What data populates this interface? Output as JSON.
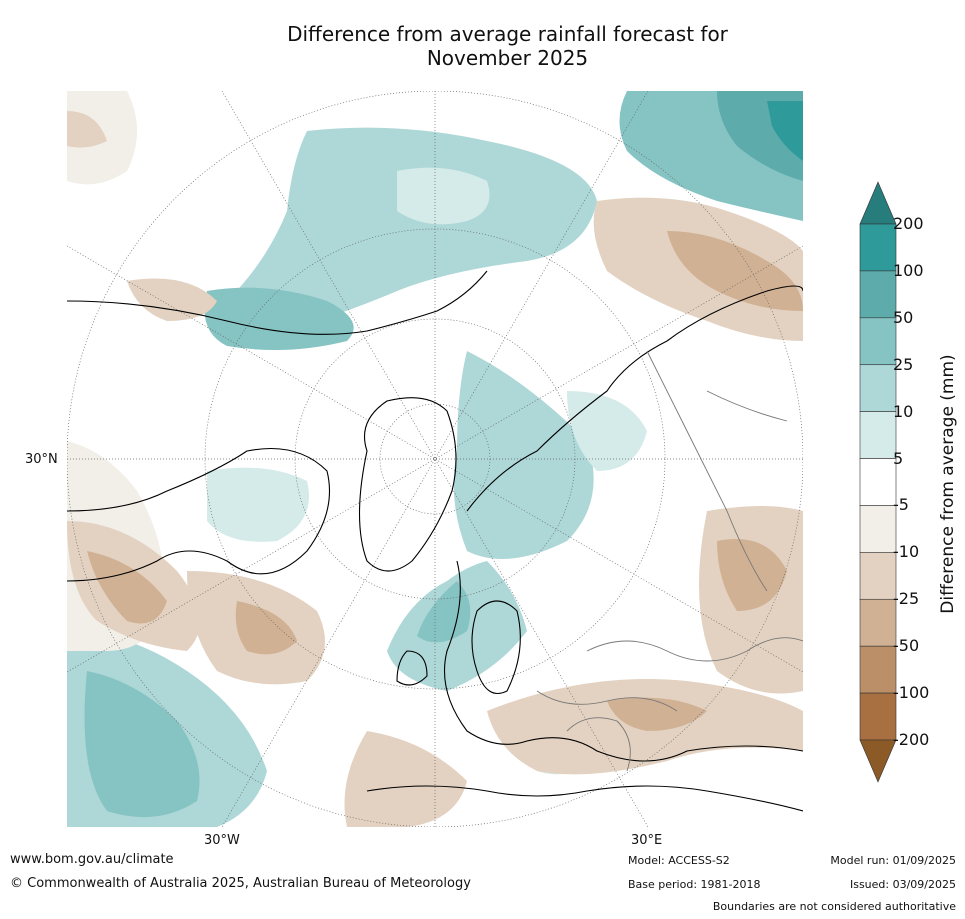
{
  "title_line1": "Difference from average rainfall forecast for",
  "title_line2": "November 2025",
  "lat_label": "30°N",
  "lon_label_w": "30°W",
  "lon_label_e": "30°E",
  "colorbar": {
    "title": "Difference from average (mm)",
    "ticks": [
      "200",
      "100",
      "50",
      "25",
      "10",
      "5",
      "-5",
      "-10",
      "-25",
      "-50",
      "-100",
      "-200"
    ],
    "colors": [
      "#277c7c",
      "#2f9a9a",
      "#5eabab",
      "#86c3c3",
      "#aed7d7",
      "#d5ebea",
      "#ffffff",
      "#f2eee8",
      "#e3d2c1",
      "#d0b193",
      "#bb9068",
      "#a87040",
      "#8b5a26"
    ]
  },
  "footer": {
    "url": "www.bom.gov.au/climate",
    "copyright": "© Commonwealth of Australia 2025, Australian Bureau of Meteorology",
    "model": "Model: ACCESS-S2",
    "base_period": "Base period: 1981-2018",
    "model_run": "Model run: 01/09/2025",
    "issued": "Issued: 03/09/2025",
    "disclaimer": "Boundaries are not considered authoritative"
  }
}
